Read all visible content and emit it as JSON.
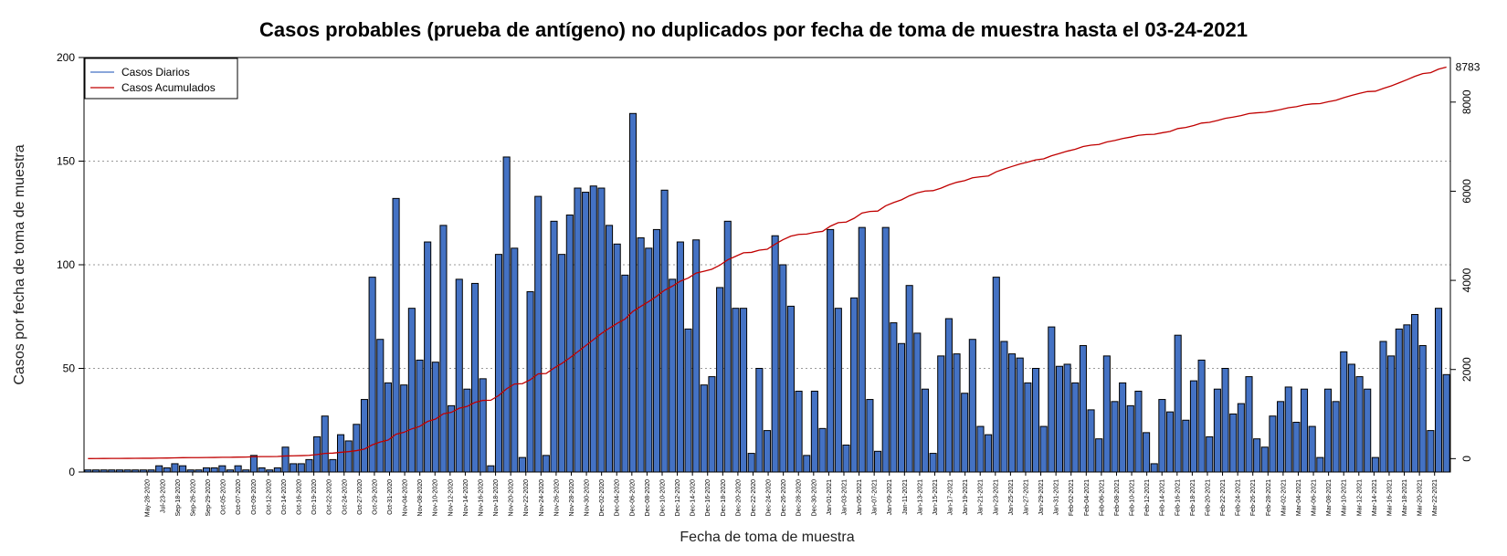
{
  "chart_data": {
    "type": "bar",
    "title": "Casos probables (prueba de antígeno) no duplicados por fecha de toma de muestra hasta el 03-24-2021",
    "xlabel": "Fecha de toma de muestra",
    "ylabel": "Casos por fecha de toma de muestra",
    "ylim": [
      0,
      200
    ],
    "y_ticks": [
      0,
      50,
      100,
      150,
      200
    ],
    "y2lim": [
      -300,
      9000
    ],
    "y2_ticks": [
      0,
      2000,
      4000,
      6000,
      8000
    ],
    "grid": "horizontal dotted",
    "legend_position": "top-left",
    "colors": {
      "bars": "#4472c4",
      "bar_border": "#000000",
      "cumulative": "#c00000",
      "grid": "#9a9a9a"
    },
    "x_tick_labels": [
      "May-28-2020",
      "Jul-23-2020",
      "Sep-18-2020",
      "Sep-26-2020",
      "Sep-29-2020",
      "Oct-05-2020",
      "Oct-07-2020",
      "Oct-09-2020",
      "Oct-12-2020",
      "Oct-14-2020",
      "Oct-16-2020",
      "Oct-19-2020",
      "Oct-22-2020",
      "Oct-24-2020",
      "Oct-27-2020",
      "Oct-29-2020",
      "Oct-31-2020",
      "Nov-04-2020",
      "Nov-08-2020",
      "Nov-10-2020",
      "Nov-12-2020",
      "Nov-14-2020",
      "Nov-16-2020",
      "Nov-18-2020",
      "Nov-20-2020",
      "Nov-22-2020",
      "Nov-24-2020",
      "Nov-26-2020",
      "Nov-28-2020",
      "Nov-30-2020",
      "Dec-02-2020",
      "Dec-04-2020",
      "Dec-06-2020",
      "Dec-08-2020",
      "Dec-10-2020",
      "Dec-12-2020",
      "Dec-14-2020",
      "Dec-16-2020",
      "Dec-18-2020",
      "Dec-20-2020",
      "Dec-22-2020",
      "Dec-24-2020",
      "Dec-26-2020",
      "Dec-28-2020",
      "Dec-30-2020",
      "Jan-01-2021",
      "Jan-03-2021",
      "Jan-05-2021",
      "Jan-07-2021",
      "Jan-09-2021",
      "Jan-11-2021",
      "Jan-13-2021",
      "Jan-15-2021",
      "Jan-17-2021",
      "Jan-19-2021",
      "Jan-21-2021",
      "Jan-23-2021",
      "Jan-25-2021",
      "Jan-27-2021",
      "Jan-29-2021",
      "Jan-31-2021",
      "Feb-02-2021",
      "Feb-04-2021",
      "Feb-06-2021",
      "Feb-08-2021",
      "Feb-10-2021",
      "Feb-12-2021",
      "Feb-14-2021",
      "Feb-16-2021",
      "Feb-18-2021",
      "Feb-20-2021",
      "Feb-22-2021",
      "Feb-24-2021",
      "Feb-26-2021",
      "Feb-28-2021",
      "Mar-02-2021",
      "Mar-04-2021",
      "Mar-06-2021",
      "Mar-08-2021",
      "Mar-10-2021",
      "Mar-12-2021",
      "Mar-14-2021",
      "Mar-16-2021",
      "Mar-18-2021",
      "Mar-20-2021",
      "Mar-22-2021"
    ],
    "series": [
      {
        "name": "Casos Diarios",
        "type": "bar",
        "values": [
          1,
          1,
          1,
          1,
          1,
          1,
          1,
          1,
          1,
          3,
          2,
          4,
          3,
          1,
          1,
          2,
          2,
          3,
          1,
          3,
          1,
          8,
          2,
          1,
          2,
          12,
          4,
          4,
          6,
          17,
          27,
          6,
          18,
          15,
          23,
          35,
          94,
          64,
          43,
          132,
          42,
          79,
          54,
          111,
          53,
          119,
          32,
          93,
          40,
          91,
          45,
          3,
          105,
          152,
          108,
          7,
          87,
          133,
          8,
          121,
          105,
          124,
          137,
          135,
          138,
          137,
          119,
          110,
          95,
          173,
          113,
          108,
          117,
          136,
          93,
          111,
          69,
          112,
          42,
          46,
          89,
          121,
          79,
          79,
          9,
          50,
          20,
          114,
          100,
          80,
          39,
          8,
          39,
          21,
          117,
          79,
          13,
          84,
          118,
          35,
          10,
          118,
          72,
          62,
          90,
          67,
          40,
          9,
          56,
          74,
          57,
          38,
          64,
          22,
          18,
          94,
          63,
          57,
          55,
          43,
          50,
          22,
          70,
          51,
          52,
          43,
          61,
          30,
          16,
          56,
          34,
          43,
          32,
          39,
          19,
          4,
          35,
          29,
          66,
          25,
          44,
          54,
          17,
          40,
          50,
          28,
          33,
          46,
          16,
          12,
          27,
          34,
          41,
          24,
          40,
          22,
          7,
          40,
          34,
          58,
          52,
          46,
          40,
          7,
          63,
          56,
          69,
          71,
          76,
          61,
          20,
          79,
          47
        ]
      },
      {
        "name": "Casos Acumulados",
        "type": "line",
        "final_value": 8783
      }
    ],
    "end_label": "8783"
  }
}
